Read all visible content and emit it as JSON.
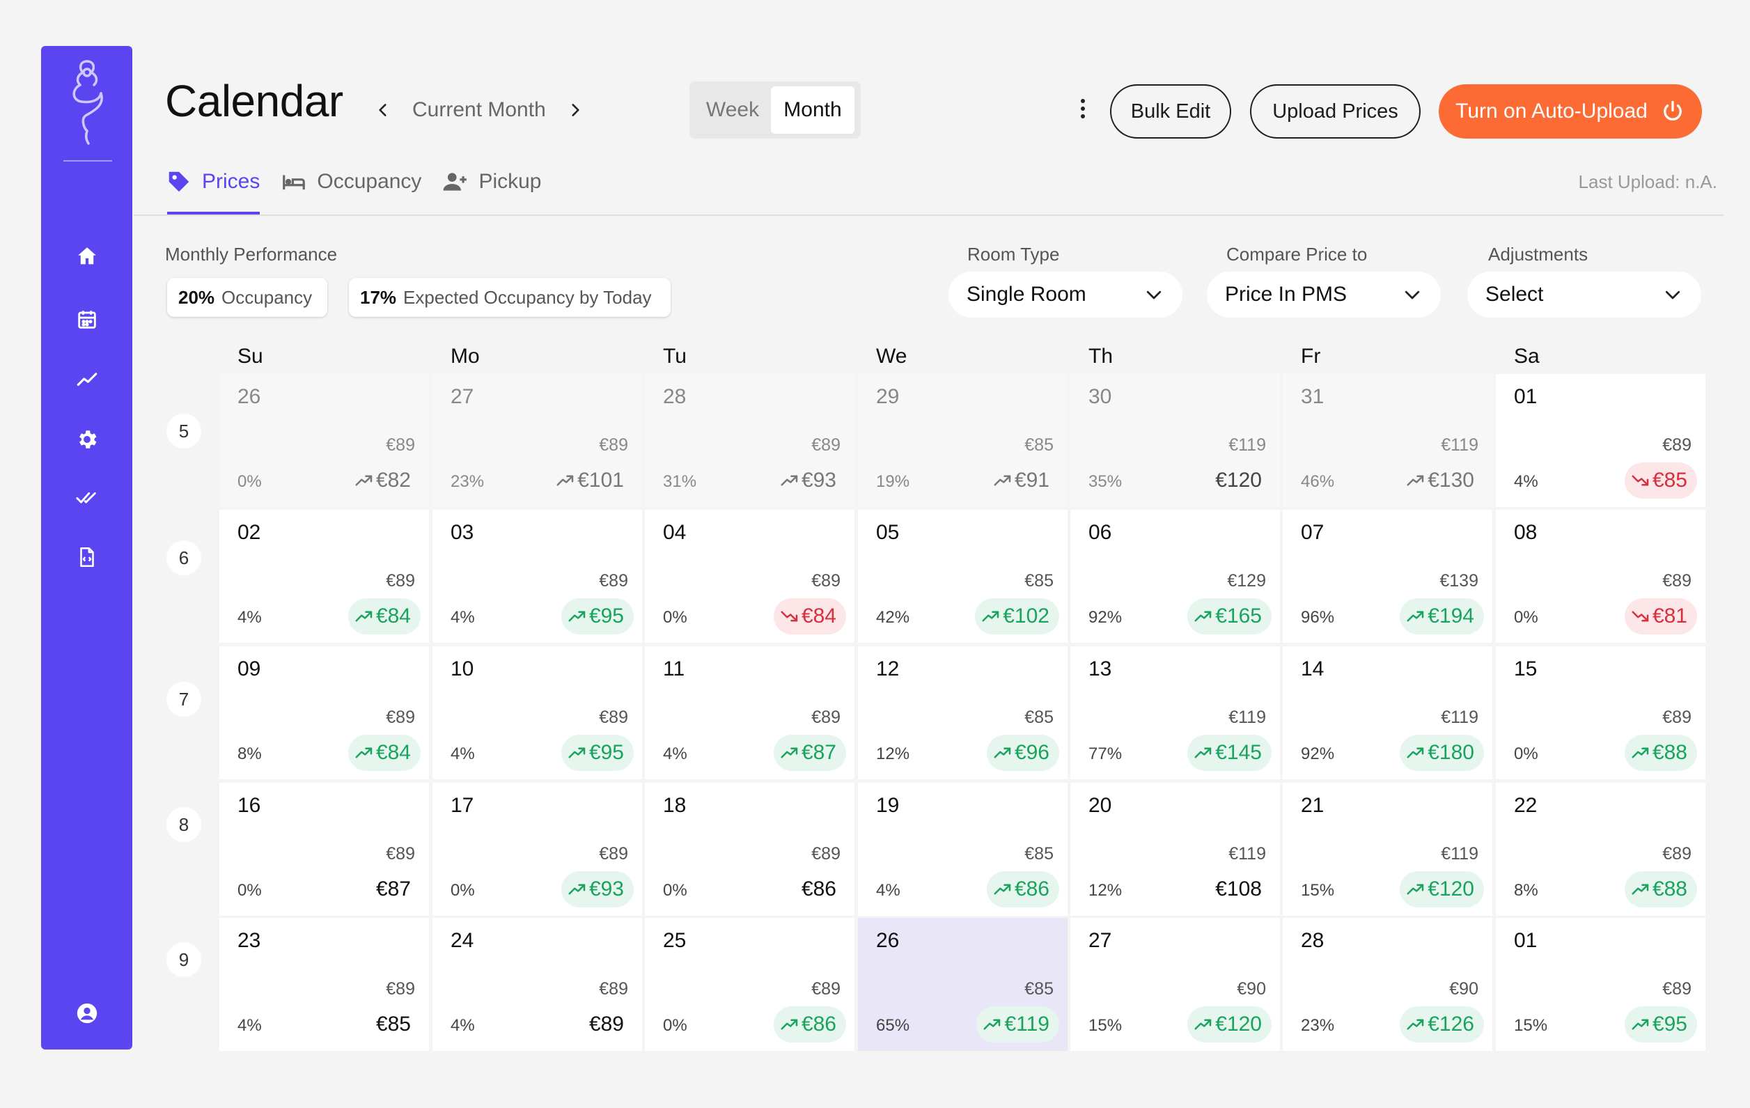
{
  "header": {
    "title": "Calendar",
    "month_label": "Current Month",
    "views": {
      "week": "Week",
      "month": "Month",
      "selected": "Month"
    },
    "bulk_edit": "Bulk Edit",
    "upload_prices": "Upload Prices",
    "auto_upload": "Turn on Auto-Upload"
  },
  "tabs": [
    {
      "label": "Prices",
      "icon": "price-tag-icon",
      "active": true
    },
    {
      "label": "Occupancy",
      "icon": "bed-icon",
      "active": false
    },
    {
      "label": "Pickup",
      "icon": "add-person-icon",
      "active": false
    }
  ],
  "last_upload": "Last Upload: n.A.",
  "performance": {
    "label": "Monthly Performance",
    "occupancy_value": "20%",
    "occupancy_label": "Occupancy",
    "expected_value": "17%",
    "expected_label": "Expected Occupancy by Today"
  },
  "filters": {
    "room_type": {
      "label": "Room Type",
      "value": "Single Room"
    },
    "compare": {
      "label": "Compare Price to",
      "value": "Price In PMS"
    },
    "adjustments": {
      "label": "Adjustments",
      "value": "Select"
    }
  },
  "colors": {
    "accent": "#5b45f0",
    "orange": "#fc6b34",
    "up": "#19a35d",
    "down": "#d6303f"
  },
  "days_of_week": [
    "Su",
    "Mo",
    "Tu",
    "We",
    "Th",
    "Fr",
    "Sa"
  ],
  "weeks": [
    {
      "number": "5",
      "days": [
        {
          "date": "26",
          "pms": "€89",
          "occ": "0%",
          "price": "€82",
          "trend": "up",
          "style": "muted",
          "past": true
        },
        {
          "date": "27",
          "pms": "€89",
          "occ": "23%",
          "price": "€101",
          "trend": "up",
          "style": "muted",
          "past": true
        },
        {
          "date": "28",
          "pms": "€89",
          "occ": "31%",
          "price": "€93",
          "trend": "up",
          "style": "muted",
          "past": true
        },
        {
          "date": "29",
          "pms": "€85",
          "occ": "19%",
          "price": "€91",
          "trend": "up",
          "style": "muted",
          "past": true
        },
        {
          "date": "30",
          "pms": "€119",
          "occ": "35%",
          "price": "€120",
          "trend": "none",
          "style": "muted-dark",
          "past": true
        },
        {
          "date": "31",
          "pms": "€119",
          "occ": "46%",
          "price": "€130",
          "trend": "up",
          "style": "muted",
          "past": true
        },
        {
          "date": "01",
          "pms": "€89",
          "occ": "4%",
          "price": "€85",
          "trend": "down",
          "style": "down"
        }
      ]
    },
    {
      "number": "6",
      "days": [
        {
          "date": "02",
          "pms": "€89",
          "occ": "4%",
          "price": "€84",
          "trend": "up",
          "style": "up"
        },
        {
          "date": "03",
          "pms": "€89",
          "occ": "4%",
          "price": "€95",
          "trend": "up",
          "style": "up"
        },
        {
          "date": "04",
          "pms": "€89",
          "occ": "0%",
          "price": "€84",
          "trend": "down",
          "style": "down"
        },
        {
          "date": "05",
          "pms": "€85",
          "occ": "42%",
          "price": "€102",
          "trend": "up",
          "style": "up"
        },
        {
          "date": "06",
          "pms": "€129",
          "occ": "92%",
          "price": "€165",
          "trend": "up",
          "style": "up"
        },
        {
          "date": "07",
          "pms": "€139",
          "occ": "96%",
          "price": "€194",
          "trend": "up",
          "style": "up"
        },
        {
          "date": "08",
          "pms": "€89",
          "occ": "0%",
          "price": "€81",
          "trend": "down",
          "style": "down"
        }
      ]
    },
    {
      "number": "7",
      "days": [
        {
          "date": "09",
          "pms": "€89",
          "occ": "8%",
          "price": "€84",
          "trend": "up",
          "style": "up"
        },
        {
          "date": "10",
          "pms": "€89",
          "occ": "4%",
          "price": "€95",
          "trend": "up",
          "style": "up"
        },
        {
          "date": "11",
          "pms": "€89",
          "occ": "4%",
          "price": "€87",
          "trend": "up",
          "style": "up"
        },
        {
          "date": "12",
          "pms": "€85",
          "occ": "12%",
          "price": "€96",
          "trend": "up",
          "style": "up"
        },
        {
          "date": "13",
          "pms": "€119",
          "occ": "77%",
          "price": "€145",
          "trend": "up",
          "style": "up"
        },
        {
          "date": "14",
          "pms": "€119",
          "occ": "92%",
          "price": "€180",
          "trend": "up",
          "style": "up"
        },
        {
          "date": "15",
          "pms": "€89",
          "occ": "0%",
          "price": "€88",
          "trend": "up",
          "style": "up"
        }
      ]
    },
    {
      "number": "8",
      "days": [
        {
          "date": "16",
          "pms": "€89",
          "occ": "0%",
          "price": "€87",
          "trend": "none",
          "style": "plain"
        },
        {
          "date": "17",
          "pms": "€89",
          "occ": "0%",
          "price": "€93",
          "trend": "up",
          "style": "up"
        },
        {
          "date": "18",
          "pms": "€89",
          "occ": "0%",
          "price": "€86",
          "trend": "none",
          "style": "plain"
        },
        {
          "date": "19",
          "pms": "€85",
          "occ": "4%",
          "price": "€86",
          "trend": "up",
          "style": "up"
        },
        {
          "date": "20",
          "pms": "€119",
          "occ": "12%",
          "price": "€108",
          "trend": "none",
          "style": "plain"
        },
        {
          "date": "21",
          "pms": "€119",
          "occ": "15%",
          "price": "€120",
          "trend": "up",
          "style": "up"
        },
        {
          "date": "22",
          "pms": "€89",
          "occ": "8%",
          "price": "€88",
          "trend": "up",
          "style": "up"
        }
      ]
    },
    {
      "number": "9",
      "days": [
        {
          "date": "23",
          "pms": "€89",
          "occ": "4%",
          "price": "€85",
          "trend": "none",
          "style": "plain"
        },
        {
          "date": "24",
          "pms": "€89",
          "occ": "4%",
          "price": "€89",
          "trend": "none",
          "style": "plain"
        },
        {
          "date": "25",
          "pms": "€89",
          "occ": "0%",
          "price": "€86",
          "trend": "up",
          "style": "up"
        },
        {
          "date": "26",
          "pms": "€85",
          "occ": "65%",
          "price": "€119",
          "trend": "up",
          "style": "up",
          "today": true
        },
        {
          "date": "27",
          "pms": "€90",
          "occ": "15%",
          "price": "€120",
          "trend": "up",
          "style": "up"
        },
        {
          "date": "28",
          "pms": "€90",
          "occ": "23%",
          "price": "€126",
          "trend": "up",
          "style": "up"
        },
        {
          "date": "01",
          "pms": "€89",
          "occ": "15%",
          "price": "€95",
          "trend": "up",
          "style": "up"
        }
      ]
    }
  ],
  "sidebar": {
    "items": [
      {
        "icon": "home-icon"
      },
      {
        "icon": "calendar-icon"
      },
      {
        "icon": "trend-icon"
      },
      {
        "icon": "gear-icon"
      },
      {
        "icon": "double-check-icon"
      },
      {
        "icon": "code-file-icon"
      }
    ],
    "bottom": {
      "icon": "user-avatar-icon"
    }
  }
}
